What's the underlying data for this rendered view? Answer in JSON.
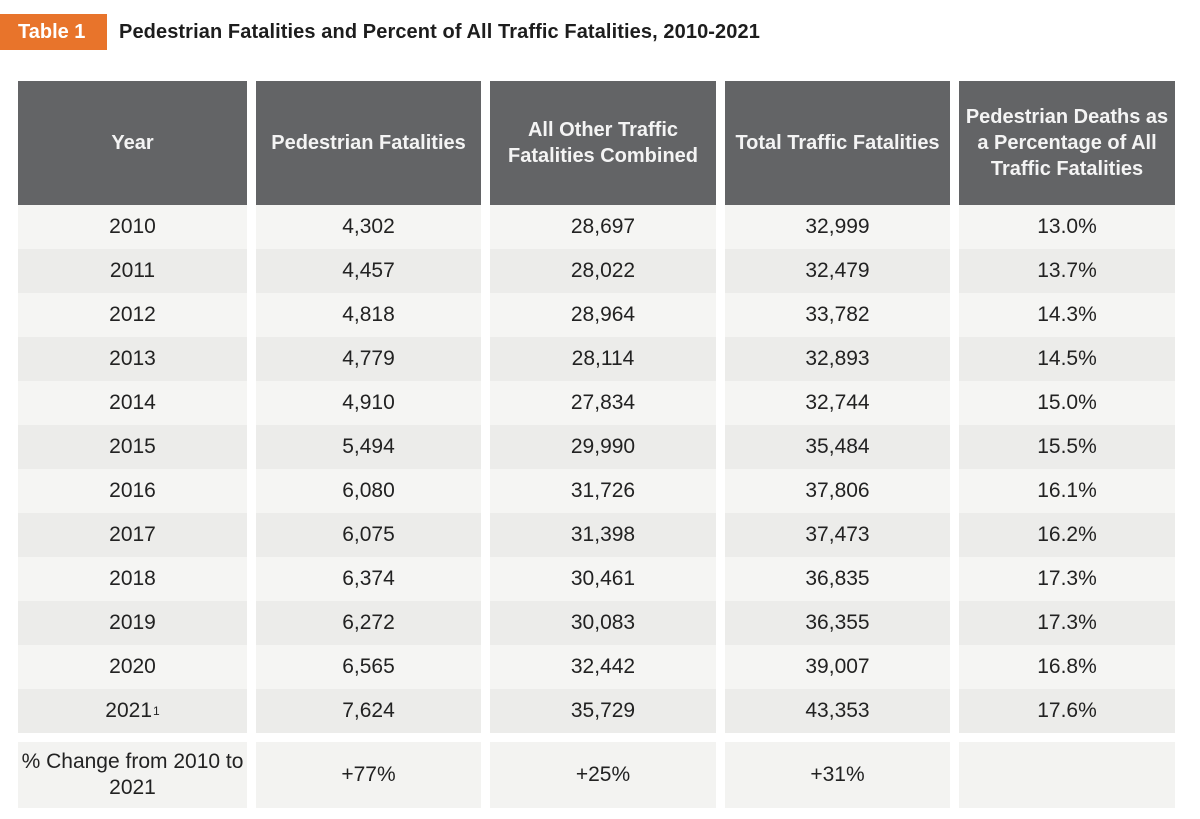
{
  "tag": "Table 1",
  "title": "Pedestrian Fatalities and Percent of All Traffic Fatalities, 2010-2021",
  "colors": {
    "tag_bg": "#e8742b",
    "header_bg": "#636466",
    "row_light": "#f5f5f3",
    "row_dark": "#ececea"
  },
  "headers": [
    "Year",
    "Pedestrian Fatalities",
    "All Other Traffic Fatalities Combined",
    "Total Traffic Fatalities",
    "Pedestrian Deaths as a Percentage of All Traffic Fatalities"
  ],
  "rows": [
    {
      "year": "2010",
      "footnote": "",
      "pedestrian": "4,302",
      "other": "28,697",
      "total": "32,999",
      "percent": "13.0%"
    },
    {
      "year": "2011",
      "footnote": "",
      "pedestrian": "4,457",
      "other": "28,022",
      "total": "32,479",
      "percent": "13.7%"
    },
    {
      "year": "2012",
      "footnote": "",
      "pedestrian": "4,818",
      "other": "28,964",
      "total": "33,782",
      "percent": "14.3%"
    },
    {
      "year": "2013",
      "footnote": "",
      "pedestrian": "4,779",
      "other": "28,114",
      "total": "32,893",
      "percent": "14.5%"
    },
    {
      "year": "2014",
      "footnote": "",
      "pedestrian": "4,910",
      "other": "27,834",
      "total": "32,744",
      "percent": "15.0%"
    },
    {
      "year": "2015",
      "footnote": "",
      "pedestrian": "5,494",
      "other": "29,990",
      "total": "35,484",
      "percent": "15.5%"
    },
    {
      "year": "2016",
      "footnote": "",
      "pedestrian": "6,080",
      "other": "31,726",
      "total": "37,806",
      "percent": "16.1%"
    },
    {
      "year": "2017",
      "footnote": "",
      "pedestrian": "6,075",
      "other": "31,398",
      "total": "37,473",
      "percent": "16.2%"
    },
    {
      "year": "2018",
      "footnote": "",
      "pedestrian": "6,374",
      "other": "30,461",
      "total": "36,835",
      "percent": "17.3%"
    },
    {
      "year": "2019",
      "footnote": "",
      "pedestrian": "6,272",
      "other": "30,083",
      "total": "36,355",
      "percent": "17.3%"
    },
    {
      "year": "2020",
      "footnote": "",
      "pedestrian": "6,565",
      "other": "32,442",
      "total": "39,007",
      "percent": "16.8%"
    },
    {
      "year": "2021",
      "footnote": "1",
      "pedestrian": "7,624",
      "other": "35,729",
      "total": "43,353",
      "percent": "17.6%"
    }
  ],
  "footer": {
    "label": "% Change from 2010 to 2021",
    "pedestrian": "+77%",
    "other": "+25%",
    "total": "+31%",
    "percent": ""
  }
}
